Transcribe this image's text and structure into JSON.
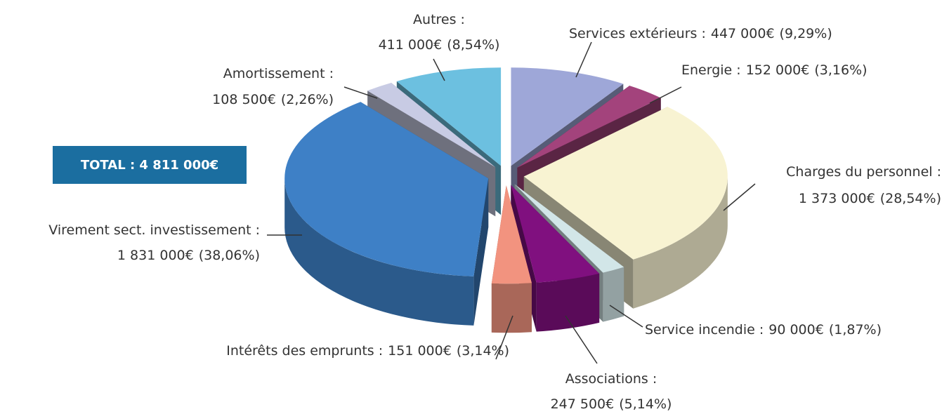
{
  "chart_data": {
    "type": "pie3d",
    "categories": [
      "Services extérieurs :",
      "Energie :",
      "Charges du personnel :",
      "Service incendie :",
      "Associations :",
      "Intérêts des emprunts :",
      "Virement sect. investissement :",
      "Amortissement :",
      "Autres :"
    ],
    "values": [
      447000,
      152000,
      1373000,
      90000,
      247500,
      151000,
      1831000,
      108500,
      411000
    ],
    "value_labels": [
      "447 000€",
      "152 000€",
      "1 373 000€",
      "90 000€",
      "247 500€",
      "151 000€",
      "1 831 000€",
      "108 500€",
      "411 000€"
    ],
    "percentages": [
      9.29,
      3.16,
      28.54,
      1.87,
      5.14,
      3.14,
      38.06,
      2.26,
      8.54
    ],
    "percentage_labels": [
      "(9,29%)",
      "(3,16%)",
      "(28,54%)",
      "(1,87%)",
      "(5,14%)",
      "(3,14%)",
      "(38,06%)",
      "(2,26%)",
      "(8,54%)"
    ],
    "colors": [
      "#9ea7d8",
      "#a3437c",
      "#f8f3d2",
      "#d2e6e8",
      "#80107f",
      "#f2937f",
      "#3e80c6",
      "#c8cbe4",
      "#6cc0e0"
    ],
    "total": {
      "value": 4811000,
      "label": "TOTAL : 4 811 000€"
    }
  }
}
